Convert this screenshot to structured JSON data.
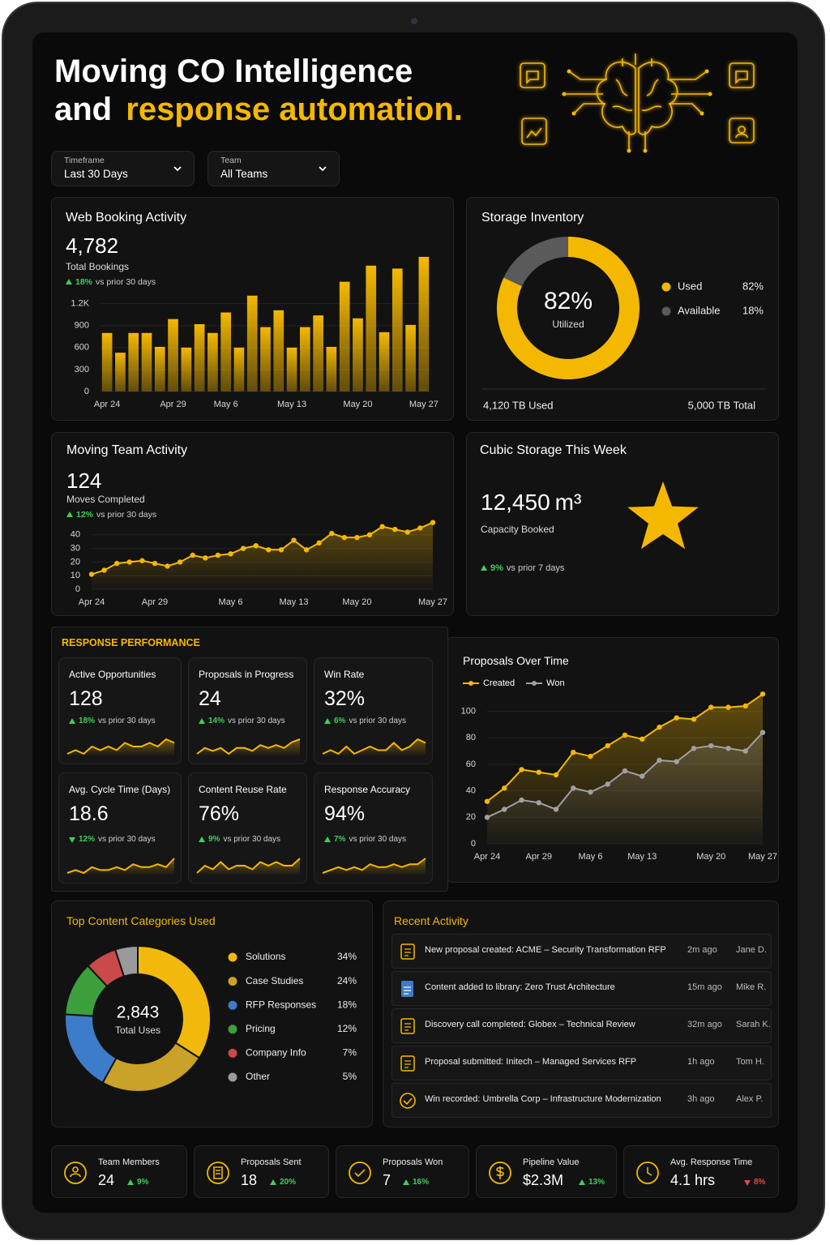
{
  "header": {
    "title_line1": "Moving CO Intelligence",
    "title_line2": "and",
    "title_highlight": "response automation."
  },
  "filters": [
    {
      "label": "Timeframe",
      "value": "Last 30 Days"
    },
    {
      "label": "Team",
      "value": "All Teams"
    }
  ],
  "chart_data": [
    {
      "type": "bar",
      "title": "Web Booking Activity",
      "kpi": "4,782",
      "kpi_label": "Total Bookings",
      "change": "18%",
      "change_note": "vs prior 30 days",
      "direction": "up",
      "change_color": "#3ecf5a",
      "categories": [
        "Apr 24",
        null,
        null,
        null,
        null,
        "Apr 29",
        null,
        null,
        null,
        "May 6",
        null,
        null,
        null,
        null,
        "May 13",
        null,
        null,
        null,
        null,
        "May 20",
        null,
        null,
        null,
        null,
        "May 27"
      ],
      "values": [
        800,
        530,
        800,
        800,
        610,
        990,
        600,
        920,
        800,
        1080,
        600,
        1310,
        880,
        1110,
        600,
        880,
        1040,
        610,
        1500,
        1000,
        1720,
        810,
        1680,
        910,
        1840
      ],
      "color": "#f5b800",
      "ylim": [
        0,
        1850
      ],
      "yticks": [
        0,
        300,
        600,
        900,
        {
          "value": 1200,
          "label": "1.2K"
        }
      ],
      "grid": true
    },
    {
      "type": "donut",
      "title": "Storage Inventory",
      "center_value": "82%",
      "center_label": "Utilized",
      "categories": [
        "Used",
        "Available"
      ],
      "values": [
        82,
        18
      ],
      "value_labels": [
        "82%",
        "18%"
      ],
      "colors": [
        "#f5b800",
        "#5a5a5a"
      ],
      "footer_left": "4,120 TB Used",
      "footer_right": "5,000 TB Total"
    },
    {
      "type": "area",
      "title": "Moving Team Activity",
      "kpi": "124",
      "kpi_label": "Moves Completed",
      "change": "12%",
      "change_note": "vs prior 30 days",
      "direction": "up",
      "change_color": "#3ecf5a",
      "categories": [
        "Apr 24",
        null,
        null,
        null,
        null,
        "Apr 29",
        null,
        null,
        null,
        null,
        null,
        "May 6",
        null,
        null,
        null,
        null,
        "May 13",
        null,
        null,
        null,
        null,
        "May 20",
        null,
        null,
        null,
        null,
        null,
        "May 27"
      ],
      "values": [
        11,
        14,
        19,
        20,
        21,
        19,
        17,
        20,
        25,
        23,
        25,
        26,
        30,
        32,
        29,
        29,
        36,
        29,
        34,
        41,
        38,
        38,
        40,
        46,
        44,
        42,
        45,
        49
      ],
      "color": "#f5b800",
      "ylim": [
        0,
        50
      ],
      "yticks": [
        0,
        10,
        20,
        30,
        40
      ],
      "grid": true
    },
    {
      "type": "line",
      "title": "Proposals Over Time",
      "legend": "top-left",
      "categories": [
        "Apr 24",
        null,
        null,
        "Apr 29",
        null,
        null,
        "May 6",
        null,
        null,
        "May 13",
        null,
        null,
        null,
        "May 20",
        null,
        null,
        "May 27"
      ],
      "series": [
        {
          "name": "Created",
          "color": "#f5b800",
          "values": [
            32,
            42,
            56,
            54,
            52,
            69,
            66,
            74,
            82,
            79,
            88,
            95,
            94,
            103,
            103,
            104,
            113
          ]
        },
        {
          "name": "Won",
          "color": "#a0a0a0",
          "values": [
            20,
            26,
            33,
            31,
            26,
            42,
            39,
            45,
            55,
            51,
            63,
            62,
            72,
            74,
            72,
            70,
            84
          ]
        }
      ],
      "ylim": [
        0,
        115
      ],
      "yticks": [
        0,
        20,
        40,
        60,
        80,
        100
      ],
      "grid": true
    },
    {
      "type": "donut",
      "title": "Top Content Categories Used",
      "center_value": "2,843",
      "center_label": "Total Uses",
      "categories": [
        "Solutions",
        "Case Studies",
        "RFP Responses",
        "Pricing",
        "Company Info",
        "Other"
      ],
      "values": [
        34,
        24,
        18,
        12,
        7,
        5
      ],
      "value_labels": [
        "34%",
        "24%",
        "18%",
        "12%",
        "7%",
        "5%"
      ],
      "colors": [
        "#f2b90c",
        "#c9a227",
        "#3d7cc9",
        "#3ca03c",
        "#c84a4a",
        "#9a9a9a"
      ]
    }
  ],
  "cubic_storage": {
    "title": "Cubic Storage This Week",
    "value": "12,450",
    "unit": "m³",
    "label": "Capacity Booked",
    "change": "9%",
    "change_note": "vs prior 7 days",
    "direction": "up",
    "change_color": "#3ecf5a"
  },
  "section_title": "RESPONSE PERFORMANCE",
  "kpi_cards": [
    {
      "name": "Active Opportunities",
      "value": "128",
      "change": "18%",
      "change_note": "vs prior 30 days",
      "direction": "up",
      "change_color": "#3ecf5a",
      "spark": [
        3,
        4,
        3,
        5,
        4,
        5,
        4,
        6,
        5,
        5,
        6,
        5,
        7,
        6
      ]
    },
    {
      "name": "Proposals in Progress",
      "value": "24",
      "change": "14%",
      "change_note": "vs prior 30 days",
      "direction": "up",
      "change_color": "#3ecf5a",
      "spark": [
        3,
        5,
        4,
        5,
        3,
        5,
        5,
        4,
        6,
        5,
        6,
        5,
        7,
        8
      ]
    },
    {
      "name": "Win Rate",
      "value": "32%",
      "change": "6%",
      "change_note": "vs prior 30 days",
      "direction": "up",
      "change_color": "#3ecf5a",
      "spark": [
        4,
        5,
        4,
        6,
        4,
        5,
        6,
        5,
        5,
        7,
        5,
        6,
        8,
        7
      ]
    },
    {
      "name": "Avg. Cycle Time (Days)",
      "value": "18.6",
      "change": "12%",
      "change_note": "vs prior 30 days",
      "direction": "down",
      "change_color": "#3ecf5a",
      "spark": [
        3,
        4,
        3,
        5,
        4,
        4,
        5,
        4,
        6,
        5,
        5,
        6,
        5,
        8
      ]
    },
    {
      "name": "Content Reuse Rate",
      "value": "76%",
      "change": "9%",
      "change_note": "vs prior 30 days",
      "direction": "up",
      "change_color": "#3ecf5a",
      "spark": [
        3,
        5,
        4,
        6,
        4,
        5,
        5,
        4,
        6,
        5,
        6,
        5,
        5,
        7
      ]
    },
    {
      "name": "Response Accuracy",
      "value": "94%",
      "change": "7%",
      "change_note": "vs prior 30 days",
      "direction": "up",
      "change_color": "#3ecf5a",
      "spark": [
        3,
        4,
        5,
        4,
        5,
        4,
        6,
        5,
        5,
        6,
        5,
        6,
        6,
        8
      ]
    }
  ],
  "recent_activity": {
    "title": "Recent Activity",
    "items": [
      {
        "text": "New proposal created: ACME – Security Transformation RFP",
        "time": "2m ago",
        "person": "Jane D."
      },
      {
        "text": "Content added to library: Zero Trust Architecture",
        "time": "15m ago",
        "person": "Mike R."
      },
      {
        "text": "Discovery call completed: Globex – Technical Review",
        "time": "32m ago",
        "person": "Sarah K."
      },
      {
        "text": "Proposal submitted: Initech – Managed Services RFP",
        "time": "1h ago",
        "person": "Tom H."
      },
      {
        "text": "Win recorded: Umbrella Corp – Infrastructure Modernization",
        "time": "3h ago",
        "person": "Alex P."
      }
    ]
  },
  "footer_stats": [
    {
      "label": "Team Members",
      "value": "24",
      "change": "9%",
      "direction": "up",
      "change_color": "#3ecf5a"
    },
    {
      "label": "Proposals Sent",
      "value": "18",
      "change": "20%",
      "direction": "up",
      "change_color": "#3ecf5a"
    },
    {
      "label": "Proposals Won",
      "value": "7",
      "change": "16%",
      "direction": "up",
      "change_color": "#3ecf5a"
    },
    {
      "label": "Pipeline Value",
      "value": "$2.3M",
      "change": "13%",
      "direction": "up",
      "change_color": "#3ecf5a"
    },
    {
      "label": "Avg. Response Time",
      "value": "4.1 hrs",
      "change": "8%",
      "direction": "down",
      "change_color": "#e04848"
    }
  ]
}
